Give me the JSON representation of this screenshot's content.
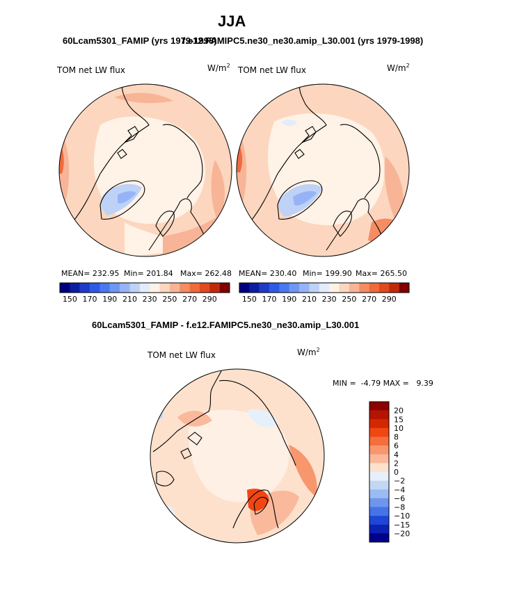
{
  "header": {
    "title": "JJA",
    "subtitle_left": "60Lcam5301_FAMIP (yrs 1979-1998)",
    "subtitle_right": "f.e12.FAMIPC5.ne30_ne30.amip_L30.001 (yrs 1979-1998)",
    "diff_title": "60Lcam5301_FAMIP - f.e12.FAMIPC5.ne30_ne30.amip_L30.001"
  },
  "colors": {
    "blue_dark": "#00008c",
    "blue": "#2d64e6",
    "blue_light": "#b4cdf5",
    "pale": "#fff0e4",
    "salmon": "#f5a587",
    "red": "#e6461e",
    "red_dark": "#8c0000",
    "coast": "#000000"
  },
  "chart_data": [
    {
      "type": "heatmap",
      "title": "60Lcam5301_FAMIP (yrs 1979-1998)",
      "variable": "TOM net LW flux",
      "units_base": "W/m",
      "units_exp": "2",
      "stats_text": {
        "mean": "MEAN= 232.95",
        "min": "Min= 201.84",
        "max": "Max= 262.48"
      },
      "mean": 232.95,
      "min": 201.84,
      "max": 262.48,
      "colorbar": {
        "levels": [
          140,
          150,
          160,
          170,
          180,
          190,
          200,
          210,
          220,
          230,
          240,
          250,
          260,
          270,
          280,
          290
        ],
        "tick_labels": [
          "150",
          "170",
          "190",
          "210",
          "230",
          "250",
          "270",
          "290"
        ],
        "colors": [
          "#00007f",
          "#0a1ea0",
          "#1e3cc8",
          "#2d5ae6",
          "#4a78f0",
          "#6e96f2",
          "#96b4f5",
          "#bed2f8",
          "#e2ecfa",
          "#fff2e6",
          "#fcd6be",
          "#f8b496",
          "#f58c64",
          "#f06a3c",
          "#e04a1e",
          "#c02a0a",
          "#800000"
        ]
      }
    },
    {
      "type": "heatmap",
      "title": "f.e12.FAMIPC5.ne30_ne30.amip_L30.001 (yrs 1979-1998)",
      "variable": "TOM net LW flux",
      "units_base": "W/m",
      "units_exp": "2",
      "stats_text": {
        "mean": "MEAN= 230.40",
        "min": "Min= 199.90",
        "max": "Max= 265.50"
      },
      "mean": 230.4,
      "min": 199.9,
      "max": 265.5,
      "colorbar": {
        "levels": [
          140,
          150,
          160,
          170,
          180,
          190,
          200,
          210,
          220,
          230,
          240,
          250,
          260,
          270,
          280,
          290
        ],
        "tick_labels": [
          "150",
          "170",
          "190",
          "210",
          "230",
          "250",
          "270",
          "290"
        ],
        "colors": [
          "#00007f",
          "#0a1ea0",
          "#1e3cc8",
          "#2d5ae6",
          "#4a78f0",
          "#6e96f2",
          "#96b4f5",
          "#bed2f8",
          "#e2ecfa",
          "#fff2e6",
          "#fcd6be",
          "#f8b496",
          "#f58c64",
          "#f06a3c",
          "#e04a1e",
          "#c02a0a",
          "#800000"
        ]
      }
    },
    {
      "type": "heatmap",
      "title": "60Lcam5301_FAMIP - f.e12.FAMIPC5.ne30_ne30.amip_L30.001",
      "variable": "TOM net LW flux",
      "units_base": "W/m",
      "units_exp": "2",
      "minmax_text": "MIN =  -4.79 MAX =   9.39",
      "min": -4.79,
      "max": 9.39,
      "colorbar": {
        "levels": [
          -20,
          -15,
          -10,
          -8,
          -6,
          -4,
          -2,
          0,
          2,
          4,
          6,
          8,
          10,
          15,
          20
        ],
        "tick_labels": [
          "20",
          "15",
          "10",
          "8",
          "6",
          "4",
          "2",
          "0",
          "−2",
          "−4",
          "−6",
          "−8",
          "−10",
          "−15",
          "−20"
        ],
        "colors": [
          "#8c0000",
          "#b41400",
          "#d22800",
          "#f04614",
          "#f56e3c",
          "#f8966e",
          "#fab99b",
          "#fde1cd",
          "#e6f0fa",
          "#c3d7f5",
          "#9bbbf2",
          "#6e96ee",
          "#4673e6",
          "#1e46d7",
          "#0a23b4",
          "#00008c"
        ]
      }
    }
  ]
}
